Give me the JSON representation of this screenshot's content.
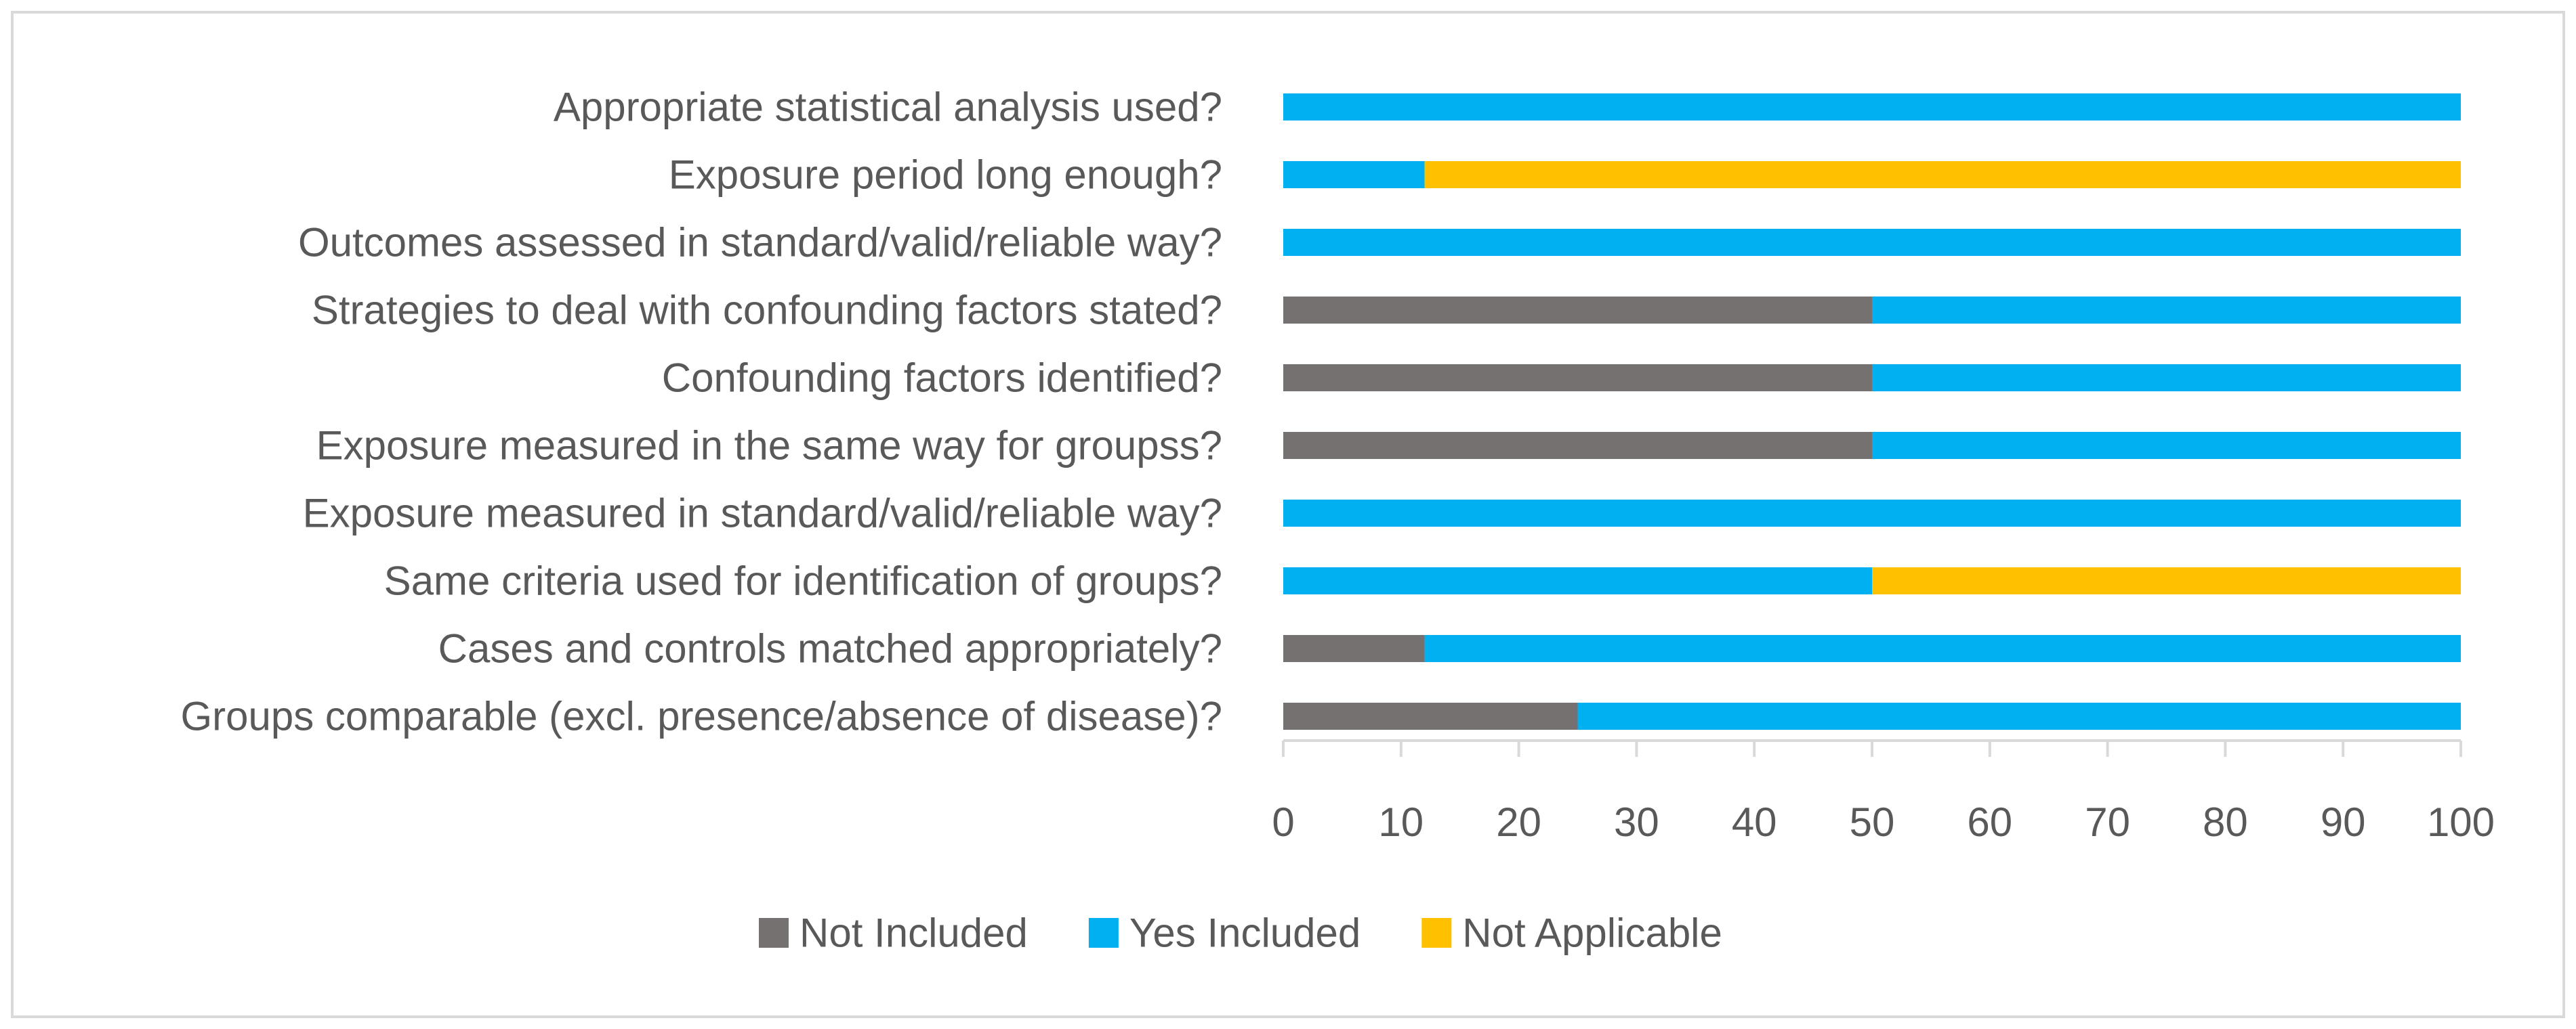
{
  "chart_data": {
    "type": "bar",
    "orientation": "horizontal",
    "stacked": true,
    "categories": [
      "Appropriate statistical analysis used?",
      "Exposure period long enough?",
      "Outcomes assessed in standard/valid/reliable way?",
      "Strategies to deal with confounding factors stated?",
      "Confounding factors identified?",
      "Exposure measured in the same way for groupss?",
      "Exposure measured in standard/valid/reliable way?",
      "Same criteria used for identification of groups?",
      "Cases and controls matched appropriately?",
      "Groups comparable (excl. presence/absence of disease)?"
    ],
    "series": [
      {
        "name": "Not Included",
        "color": "#767171",
        "values": [
          0,
          0,
          0,
          50,
          50,
          50,
          0,
          0,
          12,
          25
        ]
      },
      {
        "name": "Yes Included",
        "color": "#00b0f0",
        "values": [
          100,
          12,
          100,
          50,
          50,
          50,
          100,
          50,
          88,
          75
        ]
      },
      {
        "name": "Not Applicable",
        "color": "#ffc000",
        "values": [
          0,
          88,
          0,
          0,
          0,
          0,
          0,
          50,
          0,
          0
        ]
      }
    ],
    "xlim": [
      0,
      100
    ],
    "xticks": [
      0,
      10,
      20,
      30,
      40,
      50,
      60,
      70,
      80,
      90,
      100
    ],
    "title": "",
    "xlabel": "",
    "ylabel": "",
    "grid": false,
    "legend_position": "bottom"
  }
}
